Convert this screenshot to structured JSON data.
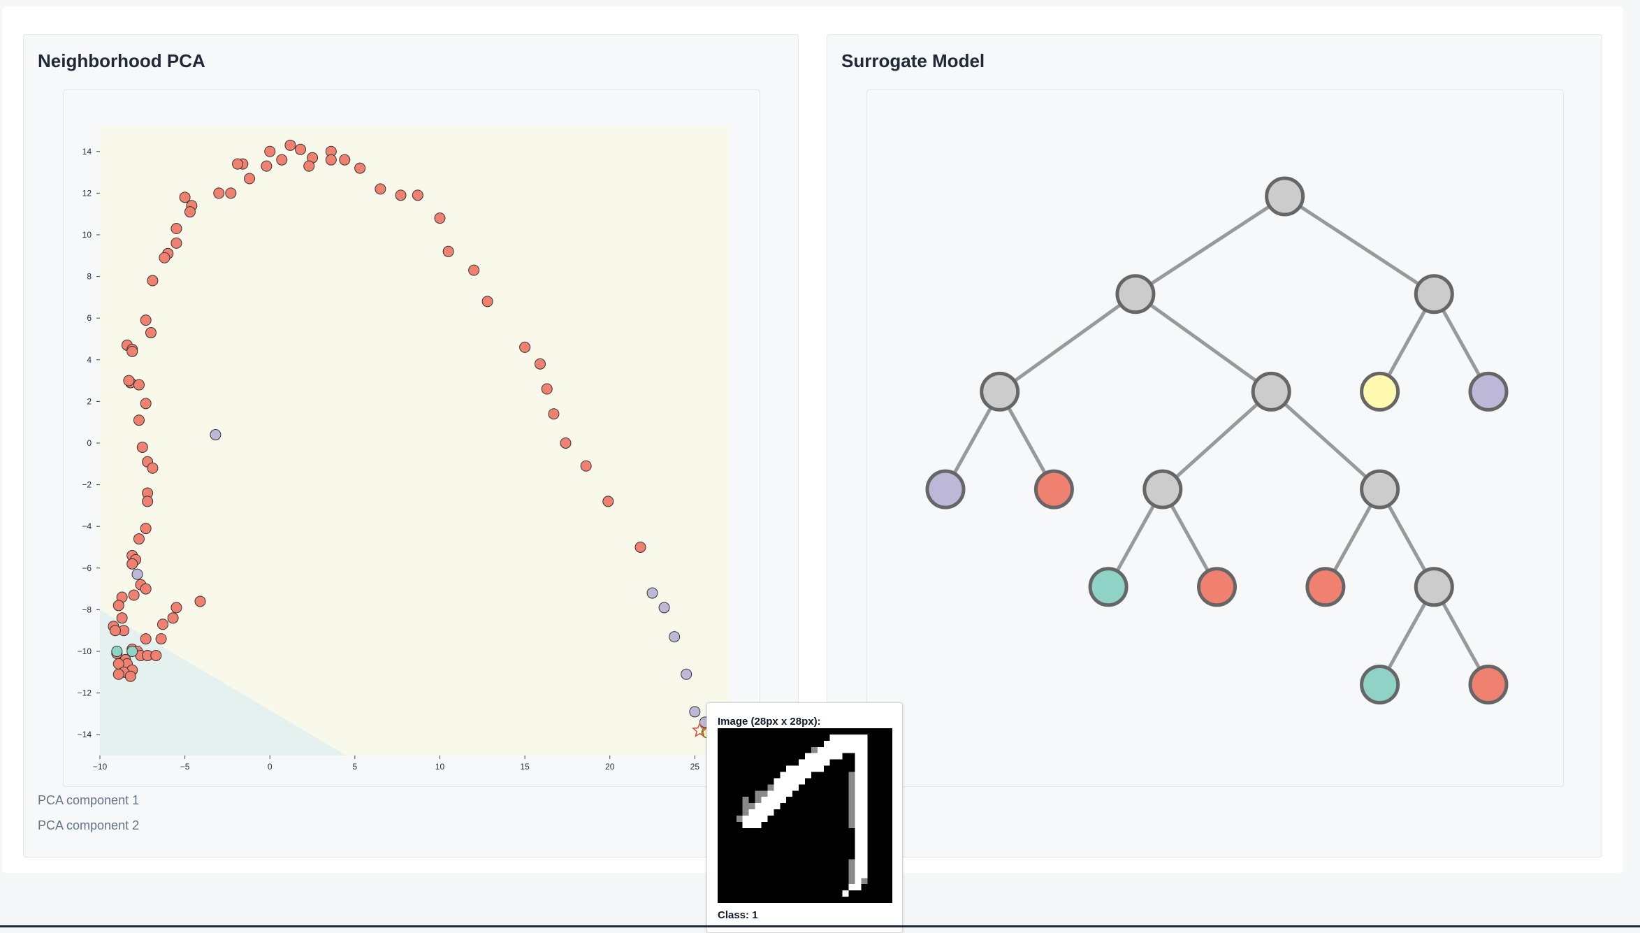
{
  "colors": {
    "class_red": "#f08070",
    "class_purple": "#bdb8d8",
    "class_yellow": "#fffab0",
    "class_teal": "#8ed3c5",
    "node_gray": "#cccccc",
    "region_yellow": "#f8f9ea",
    "region_teal": "#e4f1ef"
  },
  "pca_panel": {
    "title": "Neighborhood PCA",
    "caption_x": "PCA component 1",
    "caption_y": "PCA component 2"
  },
  "tree_panel": {
    "title": "Surrogate Model",
    "nodes": [
      {
        "id": "n0",
        "parent": null,
        "depth": 0,
        "slot": 6.25,
        "color": "gray"
      },
      {
        "id": "n1",
        "parent": "n0",
        "depth": 1,
        "slot": 3.5,
        "color": "gray"
      },
      {
        "id": "n2",
        "parent": "n0",
        "depth": 1,
        "slot": 9,
        "color": "gray"
      },
      {
        "id": "n3",
        "parent": "n1",
        "depth": 2,
        "slot": 1,
        "color": "gray"
      },
      {
        "id": "n4",
        "parent": "n1",
        "depth": 2,
        "slot": 6,
        "color": "gray"
      },
      {
        "id": "n5",
        "parent": "n2",
        "depth": 2,
        "slot": 8,
        "color": "yellow"
      },
      {
        "id": "n6",
        "parent": "n2",
        "depth": 2,
        "slot": 10,
        "color": "purple"
      },
      {
        "id": "n7",
        "parent": "n3",
        "depth": 3,
        "slot": 0,
        "color": "purple"
      },
      {
        "id": "n8",
        "parent": "n3",
        "depth": 3,
        "slot": 2,
        "color": "red"
      },
      {
        "id": "n9",
        "parent": "n4",
        "depth": 3,
        "slot": 4,
        "color": "gray"
      },
      {
        "id": "n10",
        "parent": "n4",
        "depth": 3,
        "slot": 8,
        "color": "gray"
      },
      {
        "id": "n11",
        "parent": "n9",
        "depth": 4,
        "slot": 3,
        "color": "teal"
      },
      {
        "id": "n12",
        "parent": "n9",
        "depth": 4,
        "slot": 5,
        "color": "red"
      },
      {
        "id": "n13",
        "parent": "n10",
        "depth": 4,
        "slot": 7,
        "color": "red"
      },
      {
        "id": "n14",
        "parent": "n10",
        "depth": 4,
        "slot": 9,
        "color": "gray"
      },
      {
        "id": "n15",
        "parent": "n14",
        "depth": 5,
        "slot": 8,
        "color": "teal"
      },
      {
        "id": "n16",
        "parent": "n14",
        "depth": 5,
        "slot": 10,
        "color": "red"
      }
    ]
  },
  "tooltip": {
    "title": "Image (28px x 28px):",
    "class_label": "Class: 1",
    "image_rows": [
      "............................",
      "..................######....",
      ".................#######....",
      "...............+########....",
      "..............######..##....",
      ".............#####....##....",
      "...........######.....##....",
      "..........#####......+##....",
      ".........#####.......+##....",
      "........+####........+##....",
      "......++####.........+##....",
      "....+.+####..........+##....",
      "....++####...........+##....",
      "....+####............+##....",
      "...+####.............+##....",
      "....###..............+##....",
      "......................##....",
      "......................##....",
      "......................##....",
      "......................##....",
      "......................##....",
      ".....................+##....",
      ".....................+##....",
      ".....................+##....",
      ".....................+#+....",
      ".....................##.....",
      "....................#.......",
      "............................"
    ]
  },
  "chart_data": {
    "type": "scatter",
    "title": "",
    "xlabel": "PCA component 1",
    "ylabel": "PCA component 2",
    "xlim": [
      -10,
      27
    ],
    "ylim": [
      -15,
      15.2
    ],
    "x_ticks": [
      -10,
      -5,
      0,
      5,
      10,
      15,
      20,
      25
    ],
    "y_ticks": [
      -14,
      -12,
      -10,
      -8,
      -6,
      -4,
      -2,
      0,
      2,
      4,
      6,
      8,
      10,
      12,
      14
    ],
    "series": [
      {
        "class": "red",
        "points": [
          [
            1.2,
            14.3
          ],
          [
            0,
            14
          ],
          [
            1.8,
            14.1
          ],
          [
            0.7,
            13.6
          ],
          [
            2.5,
            13.7
          ],
          [
            3.6,
            14
          ],
          [
            3.6,
            13.6
          ],
          [
            4.4,
            13.6
          ],
          [
            2.3,
            13.3
          ],
          [
            -0.2,
            13.3
          ],
          [
            -1.6,
            13.4
          ],
          [
            -1.9,
            13.4
          ],
          [
            5.3,
            13.2
          ],
          [
            -1.2,
            12.7
          ],
          [
            6.5,
            12.2
          ],
          [
            -3,
            12
          ],
          [
            -2.3,
            12
          ],
          [
            -5,
            11.8
          ],
          [
            -4.6,
            11.4
          ],
          [
            7.7,
            11.9
          ],
          [
            8.7,
            11.9
          ],
          [
            -4.7,
            11.1
          ],
          [
            10,
            10.8
          ],
          [
            -5.5,
            10.3
          ],
          [
            -5.5,
            9.6
          ],
          [
            -6,
            9.1
          ],
          [
            -6.2,
            8.9
          ],
          [
            10.5,
            9.2
          ],
          [
            12,
            8.3
          ],
          [
            -6.9,
            7.8
          ],
          [
            12.8,
            6.8
          ],
          [
            -7.3,
            5.9
          ],
          [
            -7,
            5.3
          ],
          [
            -8.4,
            4.7
          ],
          [
            -8.1,
            4.5
          ],
          [
            -8.1,
            4.4
          ],
          [
            15,
            4.6
          ],
          [
            15.9,
            3.8
          ],
          [
            -8.2,
            2.9
          ],
          [
            -8.3,
            3
          ],
          [
            -7.7,
            2.8
          ],
          [
            16.3,
            2.6
          ],
          [
            -7.3,
            1.9
          ],
          [
            16.7,
            1.4
          ],
          [
            -7.7,
            1.1
          ],
          [
            17.4,
            0
          ],
          [
            -7.5,
            -0.2
          ],
          [
            18.6,
            -1.1
          ],
          [
            -7.2,
            -0.9
          ],
          [
            -6.9,
            -1.2
          ],
          [
            -7.2,
            -2.4
          ],
          [
            -7.2,
            -2.8
          ],
          [
            19.9,
            -2.8
          ],
          [
            -7.3,
            -4.1
          ],
          [
            -7.7,
            -4.6
          ],
          [
            21.8,
            -5
          ],
          [
            -8.1,
            -5.4
          ],
          [
            -7.9,
            -5.6
          ],
          [
            -8.1,
            -5.8
          ],
          [
            -7.6,
            -6.8
          ],
          [
            -7.3,
            -7
          ],
          [
            -8,
            -7.3
          ],
          [
            -8.7,
            -7.4
          ],
          [
            -8.9,
            -7.8
          ],
          [
            -4.1,
            -7.6
          ],
          [
            -5.5,
            -7.9
          ],
          [
            -8.7,
            -8.4
          ],
          [
            -5.7,
            -8.4
          ],
          [
            -6.3,
            -8.7
          ],
          [
            -9.2,
            -8.8
          ],
          [
            -8.6,
            -9
          ],
          [
            -9.1,
            -9
          ],
          [
            -7.3,
            -9.4
          ],
          [
            -6.4,
            -9.4
          ],
          [
            -8.1,
            -9.9
          ],
          [
            -7.8,
            -10
          ],
          [
            -9,
            -10.1
          ],
          [
            -7.6,
            -10.2
          ],
          [
            -7.2,
            -10.2
          ],
          [
            -6.7,
            -10.2
          ],
          [
            -8.5,
            -10.4
          ],
          [
            -8.4,
            -10.6
          ],
          [
            -8.9,
            -10.6
          ],
          [
            -8.1,
            -10.9
          ],
          [
            -8.6,
            -11
          ],
          [
            -8.9,
            -11.1
          ],
          [
            -8.2,
            -11.2
          ]
        ]
      },
      {
        "class": "purple",
        "points": [
          [
            -3.2,
            0.4
          ],
          [
            -7.8,
            -6.3
          ],
          [
            22.5,
            -7.2
          ],
          [
            23.2,
            -7.9
          ],
          [
            23.8,
            -9.3
          ],
          [
            24.5,
            -11.1
          ],
          [
            25,
            -12.9
          ],
          [
            26.4,
            -12.9
          ],
          [
            25.6,
            -13.4
          ]
        ]
      },
      {
        "class": "teal",
        "points": [
          [
            -8.1,
            -10
          ],
          [
            -9,
            -10
          ]
        ]
      },
      {
        "class": "yellow_query",
        "points": [
          [
            25.7,
            -13.9
          ]
        ]
      }
    ],
    "decision_regions": {
      "yellow": "upper region",
      "teal": "lower-left wedge below line from (-10,-8) to (4.5,-15)"
    }
  }
}
